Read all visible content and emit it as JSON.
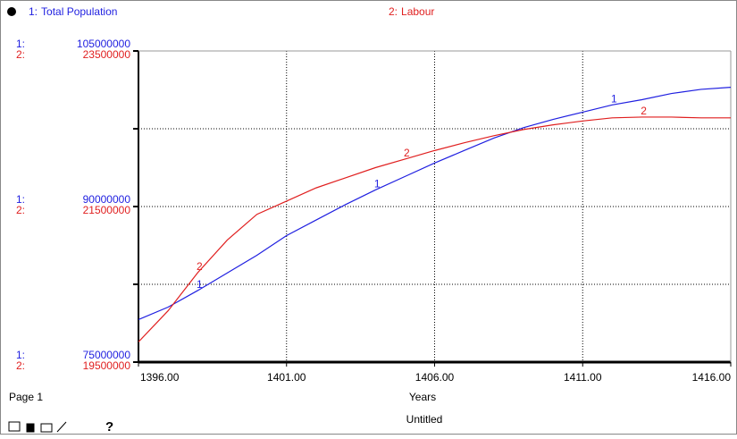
{
  "chart_data": {
    "type": "line",
    "x_label": "Years",
    "page_label": "Page 1",
    "footer": "Untitled",
    "help": "?",
    "grid": true,
    "x": [
      1396,
      1397,
      1398,
      1399,
      1400,
      1401,
      1402,
      1403,
      1404,
      1405,
      1406,
      1407,
      1408,
      1409,
      1410,
      1411,
      1412,
      1413,
      1414,
      1415,
      1416
    ],
    "xlim": [
      1396,
      1416
    ],
    "xticks": [
      {
        "value": 1396,
        "label": "1396.00"
      },
      {
        "value": 1401,
        "label": "1401.00"
      },
      {
        "value": 1406,
        "label": "1406.00"
      },
      {
        "value": 1411,
        "label": "1411.00"
      },
      {
        "value": 1416,
        "label": "1416.00"
      }
    ],
    "ylim": [
      75000000,
      105000000
    ],
    "yticks": [
      75000000,
      90000000,
      105000000
    ],
    "y2lim": [
      19500000,
      23500000
    ],
    "y2ticks": [
      19500000,
      21500000,
      23500000
    ],
    "series": [
      {
        "name": "Total Population",
        "marker": "1",
        "prefix": "1:",
        "color": "#1f1fe0",
        "values": [
          79100000,
          80300000,
          81900000,
          83600000,
          85300000,
          87200000,
          88700000,
          90200000,
          91600000,
          92900000,
          94200000,
          95400000,
          96600000,
          97600000,
          98400000,
          99100000,
          99800000,
          100300000,
          100900000,
          101300000,
          101500000
        ]
      },
      {
        "name": "Labour",
        "marker": "2",
        "prefix": "2:",
        "color": "#e01f1f",
        "axis": "y2",
        "values": [
          19760000,
          20160000,
          20650000,
          21070000,
          21400000,
          21570000,
          21740000,
          21870000,
          22000000,
          22110000,
          22220000,
          22320000,
          22410000,
          22490000,
          22550000,
          22600000,
          22640000,
          22650000,
          22650000,
          22640000,
          22640000
        ]
      }
    ]
  }
}
